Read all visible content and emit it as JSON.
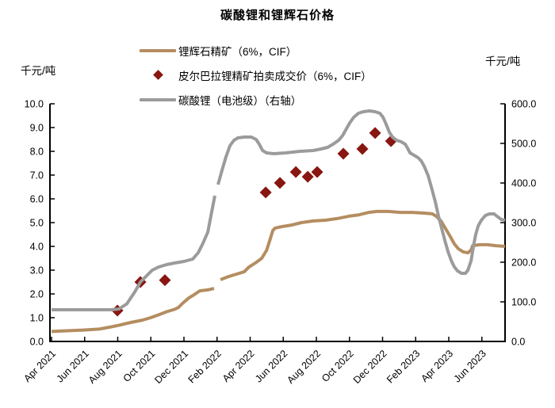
{
  "title": "碳酸锂和锂辉石价格",
  "left_axis": {
    "unit": "千元/吨",
    "min": 0,
    "max": 10,
    "step": 1
  },
  "right_axis": {
    "unit": "千元/吨",
    "min": 0,
    "max": 600,
    "step": 100
  },
  "chart_data": {
    "type": "line",
    "title": "碳酸锂和锂辉石价格",
    "x_axis": {
      "description": "time axis, month index 0 = Apr 2021",
      "tick_labels": [
        "Apr 2021",
        "Jun 2021",
        "Aug 2021",
        "Oct 2021",
        "Dec 2021",
        "Feb 2022",
        "Apr 2022",
        "Jun 2022",
        "Aug 2022",
        "Oct 2022",
        "Dec 2022",
        "Feb 2023",
        "Apr 2023",
        "Jun 2023"
      ],
      "tick_months": [
        0,
        2,
        4,
        6,
        8,
        10,
        12,
        14,
        16,
        18,
        20,
        22,
        24,
        26
      ],
      "months_span": 27.4
    },
    "left_ylim": [
      0,
      10
    ],
    "right_ylim": [
      0,
      600
    ],
    "legend_position": "top-center",
    "grid": false,
    "series": [
      {
        "name": "锂辉石精矿（6%，CIF）",
        "type": "line",
        "axis": "left",
        "color": "#B48D60",
        "points": [
          [
            0,
            0.42
          ],
          [
            0.96,
            0.45
          ],
          [
            1.92,
            0.48
          ],
          [
            2.88,
            0.52
          ],
          [
            3.5,
            0.6
          ],
          [
            4.07,
            0.68
          ],
          [
            4.79,
            0.8
          ],
          [
            5.51,
            0.9
          ],
          [
            5.99,
            1.0
          ],
          [
            6.47,
            1.12
          ],
          [
            6.95,
            1.25
          ],
          [
            7.43,
            1.35
          ],
          [
            7.67,
            1.43
          ],
          [
            7.91,
            1.6
          ],
          [
            8.29,
            1.83
          ],
          [
            8.62,
            1.97
          ],
          [
            8.96,
            2.13
          ],
          [
            9.44,
            2.17
          ],
          [
            9.82,
            2.23
          ],
          null,
          [
            10.21,
            2.6
          ],
          [
            10.69,
            2.73
          ],
          [
            11.16,
            2.83
          ],
          [
            11.64,
            2.93
          ],
          [
            11.93,
            3.13
          ],
          [
            12.31,
            3.3
          ],
          [
            12.7,
            3.5
          ],
          [
            12.99,
            3.83
          ],
          [
            13.22,
            4.33
          ],
          [
            13.37,
            4.67
          ],
          [
            13.51,
            4.77
          ],
          [
            13.9,
            4.83
          ],
          [
            14.52,
            4.9
          ],
          [
            15.09,
            5.0
          ],
          [
            15.81,
            5.07
          ],
          [
            16.53,
            5.1
          ],
          [
            17.25,
            5.17
          ],
          [
            17.97,
            5.27
          ],
          [
            18.59,
            5.33
          ],
          [
            19.17,
            5.43
          ],
          [
            19.65,
            5.47
          ],
          [
            20.36,
            5.47
          ],
          [
            21.08,
            5.43
          ],
          [
            21.8,
            5.43
          ],
          [
            22.52,
            5.4
          ],
          [
            23.0,
            5.37
          ],
          [
            23.24,
            5.27
          ],
          [
            23.53,
            5.07
          ],
          [
            23.82,
            4.73
          ],
          [
            24.1,
            4.4
          ],
          [
            24.34,
            4.1
          ],
          [
            24.58,
            3.9
          ],
          [
            24.87,
            3.77
          ],
          [
            25.16,
            3.73
          ],
          [
            25.35,
            3.85
          ],
          [
            25.44,
            4.03
          ],
          [
            25.87,
            4.07
          ],
          [
            26.35,
            4.07
          ],
          [
            26.83,
            4.03
          ],
          [
            27.4,
            4.0
          ]
        ]
      },
      {
        "name": "皮尔巴拉锂精矿拍卖成交价（6%，CIF）",
        "type": "scatter",
        "axis": "left",
        "color": "#881611",
        "points": [
          [
            3.98,
            1.3
          ],
          [
            5.37,
            2.5
          ],
          [
            6.85,
            2.58
          ],
          [
            12.94,
            6.27
          ],
          [
            13.8,
            6.67
          ],
          [
            14.76,
            7.13
          ],
          [
            15.48,
            6.93
          ],
          [
            16.05,
            7.13
          ],
          [
            17.63,
            7.9
          ],
          [
            18.78,
            8.1
          ],
          [
            19.55,
            8.77
          ],
          [
            20.51,
            8.43
          ]
        ]
      },
      {
        "name": "碳酸锂（电池级）（右轴）",
        "type": "line",
        "axis": "right",
        "color": "#9B9B9B",
        "points": [
          [
            0,
            80
          ],
          [
            3.59,
            80
          ],
          [
            4.07,
            82
          ],
          [
            4.55,
            95
          ],
          [
            5.03,
            125
          ],
          [
            5.37,
            150
          ],
          [
            5.75,
            166
          ],
          [
            6.09,
            180
          ],
          [
            6.47,
            188
          ],
          [
            6.95,
            194
          ],
          [
            7.43,
            198
          ],
          [
            8.0,
            202
          ],
          [
            8.53,
            208
          ],
          [
            8.86,
            224
          ],
          [
            9.15,
            248
          ],
          [
            9.44,
            276
          ],
          [
            9.68,
            328
          ],
          [
            9.87,
            368
          ],
          null,
          [
            10.06,
            396
          ],
          [
            10.3,
            432
          ],
          [
            10.54,
            466
          ],
          [
            10.78,
            494
          ],
          [
            11.02,
            508
          ],
          [
            11.26,
            514
          ],
          [
            11.64,
            516
          ],
          [
            12.07,
            516
          ],
          [
            12.36,
            510
          ],
          [
            12.55,
            498
          ],
          [
            12.75,
            482
          ],
          [
            12.99,
            476
          ],
          [
            13.42,
            474
          ],
          [
            14.14,
            476
          ],
          [
            15.0,
            480
          ],
          [
            15.81,
            482
          ],
          [
            16.29,
            486
          ],
          [
            16.68,
            490
          ],
          [
            17.01,
            498
          ],
          [
            17.35,
            508
          ],
          [
            17.59,
            520
          ],
          [
            17.83,
            538
          ],
          [
            18.02,
            552
          ],
          [
            18.26,
            566
          ],
          [
            18.54,
            576
          ],
          [
            18.83,
            580
          ],
          [
            19.21,
            582
          ],
          [
            19.55,
            580
          ],
          [
            19.84,
            576
          ],
          [
            20.03,
            566
          ],
          [
            20.22,
            548
          ],
          [
            20.41,
            528
          ],
          [
            20.6,
            516
          ],
          [
            20.84,
            508
          ],
          [
            21.13,
            504
          ],
          [
            21.37,
            498
          ],
          [
            21.51,
            488
          ],
          [
            21.66,
            476
          ],
          [
            21.9,
            470
          ],
          [
            22.14,
            464
          ],
          [
            22.33,
            456
          ],
          [
            22.52,
            442
          ],
          [
            22.76,
            418
          ],
          [
            23.0,
            382
          ],
          [
            23.19,
            352
          ],
          [
            23.38,
            316
          ],
          [
            23.58,
            284
          ],
          [
            23.77,
            254
          ],
          [
            23.96,
            226
          ],
          [
            24.15,
            204
          ],
          [
            24.34,
            188
          ],
          [
            24.53,
            178
          ],
          [
            24.77,
            172
          ],
          [
            25.01,
            172
          ],
          [
            25.16,
            180
          ],
          [
            25.35,
            204
          ],
          [
            25.49,
            240
          ],
          [
            25.63,
            270
          ],
          [
            25.78,
            292
          ],
          [
            25.97,
            306
          ],
          [
            26.21,
            318
          ],
          [
            26.45,
            322
          ],
          [
            26.74,
            322
          ],
          [
            26.98,
            314
          ],
          [
            27.17,
            308
          ],
          [
            27.4,
            306
          ]
        ]
      }
    ]
  }
}
